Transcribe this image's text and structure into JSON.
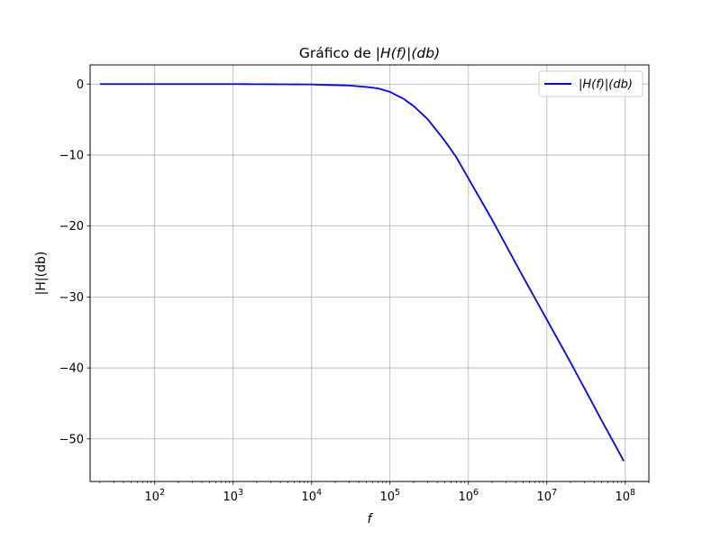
{
  "chart_data": {
    "type": "line",
    "title": "Gráfico de |H(f)|(db)",
    "title_parts": {
      "prefix": "Gráfico de ",
      "math": "|H(f)|(db)"
    },
    "xlabel": "f",
    "ylabel": "|H|(db)",
    "x_scale": "log",
    "grid": true,
    "legend_position": "top-right",
    "xlim": [
      15,
      200000000
    ],
    "ylim": [
      -56,
      2.7
    ],
    "x_ticks": [
      {
        "value": 100,
        "base": "10",
        "exp": "2"
      },
      {
        "value": 1000,
        "base": "10",
        "exp": "3"
      },
      {
        "value": 10000,
        "base": "10",
        "exp": "4"
      },
      {
        "value": 100000,
        "base": "10",
        "exp": "5"
      },
      {
        "value": 1000000,
        "base": "10",
        "exp": "6"
      },
      {
        "value": 10000000,
        "base": "10",
        "exp": "7"
      },
      {
        "value": 100000000,
        "base": "10",
        "exp": "8"
      }
    ],
    "y_ticks": [
      {
        "value": 0,
        "label": "0"
      },
      {
        "value": -10,
        "label": "−10"
      },
      {
        "value": -20,
        "label": "−20"
      },
      {
        "value": -30,
        "label": "−30"
      },
      {
        "value": -40,
        "label": "−40"
      },
      {
        "value": -50,
        "label": "−50"
      }
    ],
    "series": [
      {
        "name": "|H(f)|(db)",
        "color": "#0000ff",
        "x": [
          20,
          100,
          1000,
          10000,
          30000,
          50000,
          70000,
          100000,
          150000,
          200000,
          300000,
          500000,
          700000,
          1000000,
          2000000,
          5000000,
          10000000,
          20000000,
          50000000,
          100000000
        ],
        "y": [
          0,
          0,
          0,
          -0.05,
          -0.2,
          -0.4,
          -0.6,
          -1.1,
          -2.1,
          -3.1,
          -4.9,
          -8.0,
          -10.3,
          -13.3,
          -19.1,
          -27.2,
          -33.2,
          -39.2,
          -47.4,
          -53.5
        ]
      }
    ]
  }
}
